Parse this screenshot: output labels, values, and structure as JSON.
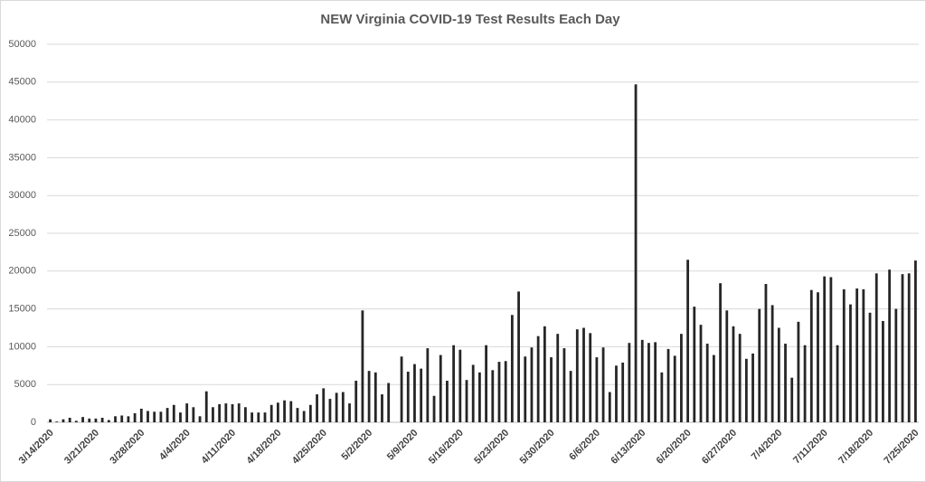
{
  "chart_data": {
    "type": "bar",
    "title": "NEW Virginia COVID-19 Test Results Each Day",
    "categories": [
      "3/14/2020",
      null,
      null,
      null,
      null,
      null,
      null,
      "3/21/2020",
      null,
      null,
      null,
      null,
      null,
      null,
      "3/28/2020",
      null,
      null,
      null,
      null,
      null,
      null,
      "4/4/2020",
      null,
      null,
      null,
      null,
      null,
      null,
      "4/11/2020",
      null,
      null,
      null,
      null,
      null,
      null,
      "4/18/2020",
      null,
      null,
      null,
      null,
      null,
      null,
      "4/25/2020",
      null,
      null,
      null,
      null,
      null,
      null,
      "5/2/2020",
      null,
      null,
      null,
      null,
      null,
      null,
      "5/9/2020",
      null,
      null,
      null,
      null,
      null,
      null,
      "5/16/2020",
      null,
      null,
      null,
      null,
      null,
      null,
      "5/23/2020",
      null,
      null,
      null,
      null,
      null,
      null,
      "5/30/2020",
      null,
      null,
      null,
      null,
      null,
      null,
      "6/6/2020",
      null,
      null,
      null,
      null,
      null,
      null,
      "6/13/2020",
      null,
      null,
      null,
      null,
      null,
      null,
      "6/20/2020",
      null,
      null,
      null,
      null,
      null,
      null,
      "6/27/2020",
      null,
      null,
      null,
      null,
      null,
      null,
      "7/4/2020",
      null,
      null,
      null,
      null,
      null,
      null,
      "7/11/2020",
      null,
      null,
      null,
      null,
      null,
      null,
      "7/18/2020",
      null,
      null,
      null,
      null,
      null,
      null,
      "7/25/2020"
    ],
    "values": [
      400,
      100,
      400,
      600,
      200,
      700,
      500,
      500,
      600,
      300,
      800,
      900,
      800,
      1200,
      1800,
      1500,
      1400,
      1400,
      1900,
      2300,
      1300,
      2500,
      2000,
      800,
      4100,
      2000,
      2400,
      2500,
      2400,
      2500,
      2000,
      1300,
      1300,
      1300,
      2300,
      2600,
      2900,
      2800,
      1900,
      1500,
      2300,
      3700,
      4500,
      3100,
      3900,
      4000,
      2500,
      5500,
      14800,
      6800,
      6600,
      3700,
      5200,
      0,
      8700,
      6700,
      7700,
      7100,
      9800,
      3500,
      8900,
      5500,
      10200,
      9600,
      5600,
      7600,
      6600,
      10200,
      6900,
      8000,
      8100,
      14200,
      17300,
      8700,
      9900,
      11400,
      12700,
      8600,
      11700,
      9800,
      6800,
      12300,
      12500,
      11800,
      8600,
      9900,
      4000,
      7500,
      7900,
      10500,
      44700,
      10900,
      10500,
      10600,
      6600,
      9700,
      8800,
      11700,
      21500,
      15300,
      12900,
      10400,
      8900,
      18400,
      14800,
      12700,
      11700,
      8400,
      9100,
      15000,
      18300,
      15500,
      12500,
      10400,
      5900,
      13300,
      10200,
      17500,
      17200,
      19300,
      19200,
      10200,
      17600,
      15600,
      17700,
      17600,
      14500,
      19700,
      13400,
      20200,
      15000,
      19600,
      19700,
      21400
    ],
    "color": "#262626",
    "ylim": [
      0,
      50000
    ],
    "yticks": [
      0,
      5000,
      10000,
      15000,
      20000,
      25000,
      30000,
      35000,
      40000,
      45000,
      50000
    ],
    "grid": true
  }
}
